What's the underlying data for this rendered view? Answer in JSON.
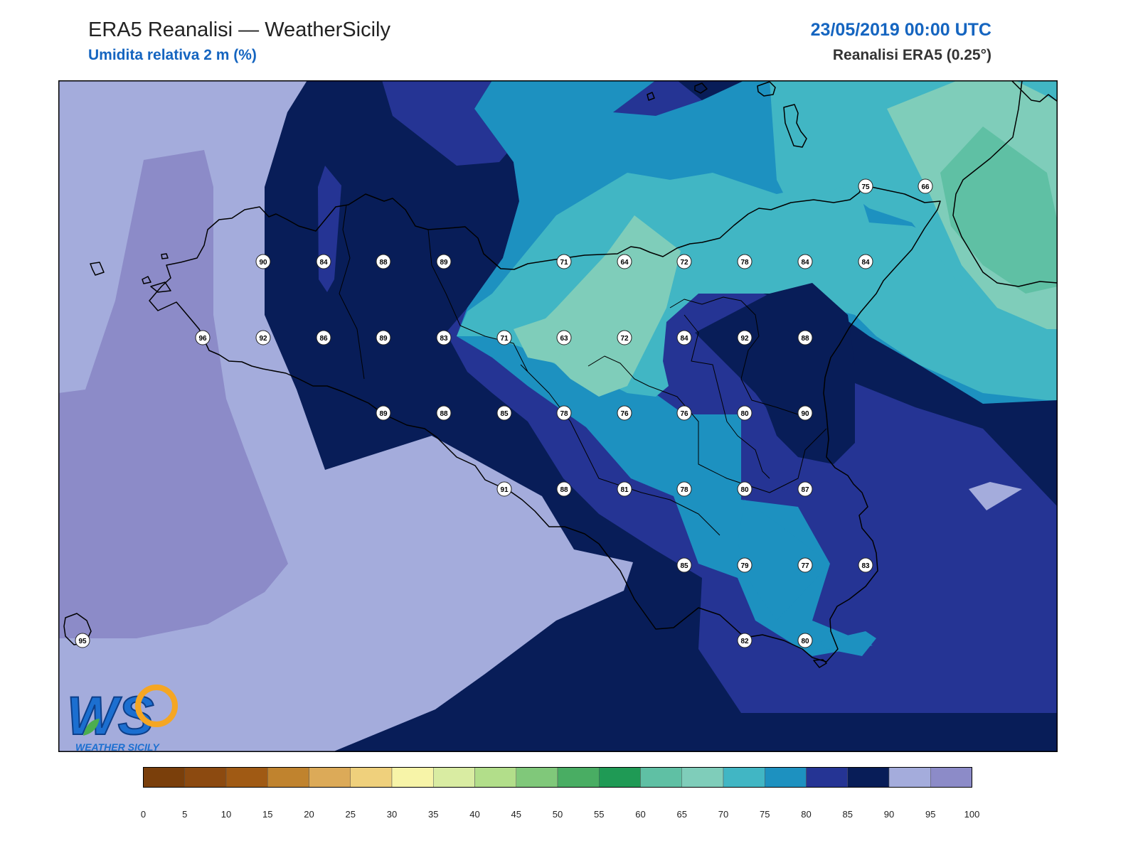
{
  "header": {
    "title": "ERA5 Reanalisi — WeatherSicily",
    "subtitle": "Umidita relativa 2 m (%)",
    "datetime": "23/05/2019 00:00 UTC",
    "source": "Reanalisi ERA5 (0.25°)"
  },
  "logo": {
    "initials": "WS",
    "text": "WEATHER SICILY"
  },
  "colorbar": {
    "ticks": [
      "0",
      "5",
      "10",
      "15",
      "20",
      "25",
      "30",
      "35",
      "40",
      "45",
      "50",
      "55",
      "60",
      "65",
      "70",
      "75",
      "80",
      "85",
      "90",
      "95",
      "100"
    ],
    "colors": [
      "#7a3f0b",
      "#8c4a10",
      "#a05a14",
      "#c0832e",
      "#dcaa58",
      "#efd07c",
      "#f7f4a8",
      "#d9eca2",
      "#b2de8a",
      "#80c87a",
      "#49ad63",
      "#1f9a55",
      "#5fc0a4",
      "#7fcdba",
      "#41b6c4",
      "#1d91c0",
      "#253494",
      "#081d58",
      "#a4acdc",
      "#8c8bc8"
    ]
  },
  "stations": [
    {
      "value": "75"
    },
    {
      "value": "66"
    },
    {
      "value": "90"
    },
    {
      "value": "84"
    },
    {
      "value": "88"
    },
    {
      "value": "89"
    },
    {
      "value": "71"
    },
    {
      "value": "64"
    },
    {
      "value": "72"
    },
    {
      "value": "78"
    },
    {
      "value": "84"
    },
    {
      "value": "84"
    },
    {
      "value": "96"
    },
    {
      "value": "92"
    },
    {
      "value": "86"
    },
    {
      "value": "89"
    },
    {
      "value": "83"
    },
    {
      "value": "71"
    },
    {
      "value": "63"
    },
    {
      "value": "72"
    },
    {
      "value": "84"
    },
    {
      "value": "92"
    },
    {
      "value": "88"
    },
    {
      "value": "89"
    },
    {
      "value": "88"
    },
    {
      "value": "85"
    },
    {
      "value": "78"
    },
    {
      "value": "76"
    },
    {
      "value": "76"
    },
    {
      "value": "80"
    },
    {
      "value": "90"
    },
    {
      "value": "91"
    },
    {
      "value": "88"
    },
    {
      "value": "81"
    },
    {
      "value": "78"
    },
    {
      "value": "80"
    },
    {
      "value": "87"
    },
    {
      "value": "85"
    },
    {
      "value": "79"
    },
    {
      "value": "77"
    },
    {
      "value": "83"
    },
    {
      "value": "82"
    },
    {
      "value": "80"
    },
    {
      "value": "95"
    }
  ]
}
